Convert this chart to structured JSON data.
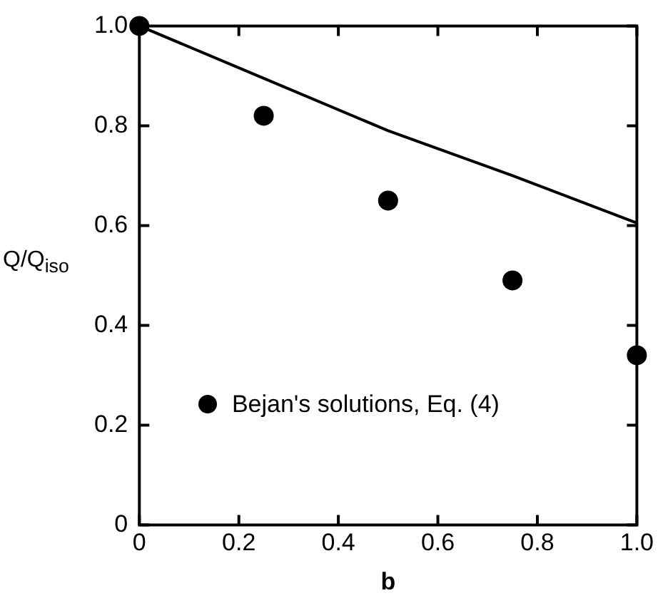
{
  "chart_data": {
    "type": "line",
    "xlabel": "b",
    "ylabel": "Q/Q$_{iso}$",
    "x": [
      0,
      0.25,
      0.5,
      0.75,
      1
    ],
    "series": [
      {
        "color": "#000000",
        "marker": "none",
        "values": [
          1.0,
          0.895,
          0.79,
          0.7,
          0.605
        ]
      },
      {
        "type": "scatter",
        "name": "Bejan's solutions, Eq. (4)",
        "color": "#000000",
        "marker": "circle",
        "values": [
          1.0,
          0.82,
          0.65,
          0.49,
          0.34
        ]
      }
    ],
    "xlim": [
      0,
      1
    ],
    "ylim": [
      0,
      1
    ],
    "xticks": [
      0,
      0.2,
      0.4,
      0.6,
      0.8,
      {
        "value": 1,
        "label": "1.0"
      }
    ],
    "yticks": [
      0,
      0.2,
      0.4,
      0.6,
      0.8,
      {
        "value": 1,
        "label": "1.0"
      }
    ],
    "grid": false,
    "legend": "bottom left"
  }
}
